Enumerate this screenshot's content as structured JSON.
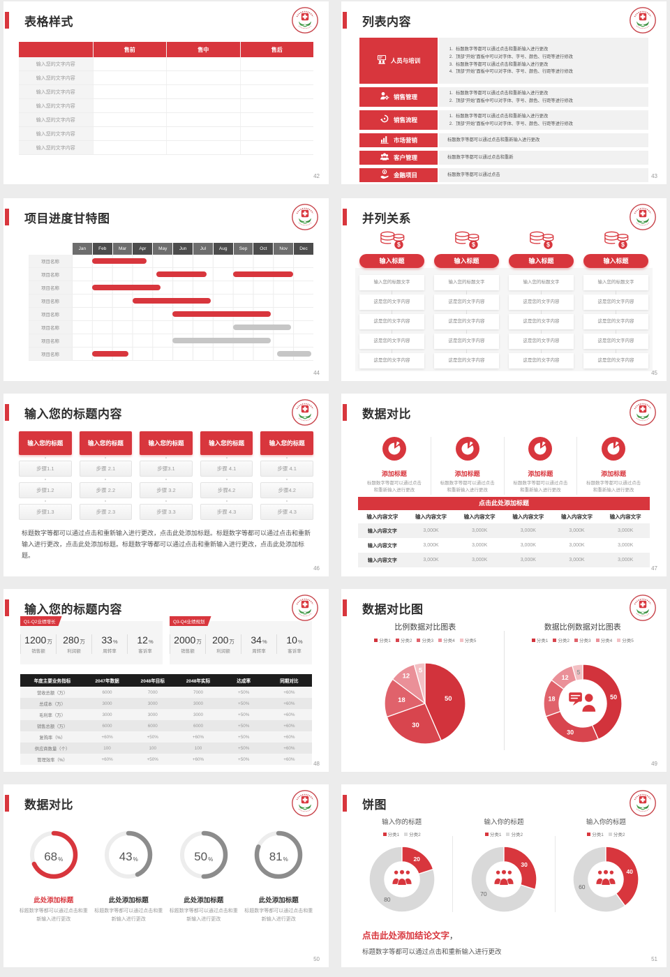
{
  "page": {
    "bg": "#ececec",
    "slide_bg": "#ffffff",
    "accent": "#d8363d"
  },
  "palette": {
    "pie": [
      "#d2333c",
      "#d8454e",
      "#e0626b",
      "#ea9098",
      "#f3c0c4"
    ],
    "gauge_gray": "#8c8c8c",
    "donut_gray": "#d9d9d9",
    "gantt_gray": "#c6c6c6"
  },
  "logo": {
    "name": "red-cross-badge"
  },
  "slides": {
    "s42": {
      "title": "表格样式",
      "page_num": "42",
      "table": {
        "headers": [
          "售前",
          "售中",
          "售后"
        ],
        "rows": [
          "输入您的文字内容",
          "输入您的文字内容",
          "输入您的文字内容",
          "输入您的文字内容",
          "输入您的文字内容",
          "输入您的文字内容",
          "输入您的文字内容"
        ]
      }
    },
    "s43": {
      "title": "列表内容",
      "page_num": "43",
      "items": [
        {
          "icon": "training-icon",
          "label": "人员与培训",
          "numbered": true,
          "lines": [
            "标题数字等都可以通过点击和重新输入进行更改",
            "顶部“开始”面板中可以对字体、字号、颜色、行距等进行修改",
            "标题数字等都可以通过点击和重新输入进行更改",
            "顶部“开始”面板中可以对字体、字号、颜色、行距等进行修改"
          ]
        },
        {
          "icon": "sales-management-icon",
          "label": "销售管理",
          "numbered": true,
          "lines": [
            "标题数字等都可以通过点击和重新输入进行更改",
            "顶部“开始”面板中可以对字体、字号、颜色、行距等进行修改"
          ]
        },
        {
          "icon": "sales-process-icon",
          "label": "销售流程",
          "numbered": true,
          "lines": [
            "标题数字等都可以通过点击和重新输入进行更改",
            "顶部“开始”面板中可以对字体、字号、颜色、行距等进行修改"
          ]
        },
        {
          "icon": "marketing-icon",
          "label": "市场营销",
          "numbered": false,
          "lines": [
            "标题数字等都可以通过点击和重新输入进行更改"
          ]
        },
        {
          "icon": "customer-management-icon",
          "label": "客户管理",
          "numbered": false,
          "lines": [
            "标题数字等都可以通过点击和重新"
          ]
        },
        {
          "icon": "finance-project-icon",
          "label": "金融项目",
          "numbered": false,
          "lines": [
            "标题数字等都可以通过点击"
          ]
        }
      ]
    },
    "s44": {
      "title": "项目进度甘特图",
      "page_num": "44",
      "gantt": {
        "months": [
          "Jan",
          "Feb",
          "Mar",
          "Apr",
          "May",
          "Jun",
          "Jul",
          "Aug",
          "Sep",
          "Oct",
          "Nov",
          "Dec"
        ],
        "row_label": "项目名称",
        "rows": [
          {
            "bars": [
              {
                "start": 1,
                "end": 3.7,
                "color": "red"
              }
            ]
          },
          {
            "bars": [
              {
                "start": 4.2,
                "end": 6.7,
                "color": "red"
              },
              {
                "start": 8,
                "end": 11,
                "color": "red"
              }
            ]
          },
          {
            "bars": [
              {
                "start": 1,
                "end": 4.4,
                "color": "red"
              }
            ]
          },
          {
            "bars": [
              {
                "start": 3,
                "end": 6.9,
                "color": "red"
              }
            ]
          },
          {
            "bars": [
              {
                "start": 5,
                "end": 9.9,
                "color": "red"
              }
            ]
          },
          {
            "bars": [
              {
                "start": 8,
                "end": 10.9,
                "color": "gray"
              }
            ]
          },
          {
            "bars": [
              {
                "start": 5,
                "end": 9.9,
                "color": "gray"
              }
            ]
          },
          {
            "bars": [
              {
                "start": 1,
                "end": 2.8,
                "color": "red"
              },
              {
                "start": 10.2,
                "end": 11.9,
                "color": "gray"
              }
            ]
          }
        ]
      }
    },
    "s45": {
      "title": "并列关系",
      "page_num": "45",
      "columns": [
        {
          "icon": "coins-icon",
          "header": "输入标题",
          "rows": [
            "输入您的标题文字",
            "这是您的文字内容",
            "这是您的文字内容",
            "这是您的文字内容",
            "这是您的文字内容"
          ]
        },
        {
          "icon": "coins-icon",
          "header": "输入标题",
          "rows": [
            "输入您的标题文字",
            "这是您的文字内容",
            "这是您的文字内容",
            "这是您的文字内容",
            "这是您的文字内容"
          ]
        },
        {
          "icon": "coins-icon",
          "header": "输入标题",
          "rows": [
            "输入您的标题文字",
            "这是您的文字内容",
            "这是您的文字内容",
            "这是您的文字内容",
            "这是您的文字内容"
          ]
        },
        {
          "icon": "coins-icon",
          "header": "输入标题",
          "rows": [
            "输入您的标题文字",
            "这是您的文字内容",
            "这是您的文字内容",
            "这是您的文字内容",
            "这是您的文字内容"
          ]
        }
      ]
    },
    "s46": {
      "title": "输入您的标题内容",
      "page_num": "46",
      "columns": [
        {
          "header": "输入您的标题",
          "steps": [
            "步骤1.1",
            "步骤1.2",
            "步骤1.3"
          ]
        },
        {
          "header": "输入您的标题",
          "steps": [
            "步骤 2.1",
            "步骤 2.2",
            "步骤 2.3"
          ]
        },
        {
          "header": "输入您的标题",
          "steps": [
            "步骤3.1",
            "步骤 3.2",
            "步骤 3.3"
          ]
        },
        {
          "header": "输入您的标题",
          "steps": [
            "步骤 4.1",
            "步骤4.2",
            "步骤 4.3"
          ]
        },
        {
          "header": "输入您的标题",
          "steps": [
            "步骤 4.1",
            "步骤4.2",
            "步骤 4.3"
          ]
        }
      ],
      "paragraph": "标题数字等都可以通过点击和重新输入进行更改，点击此处添加标题。标题数字等都可以通过点击和重新输入进行更改，点击此处添加标题。标题数字等都可以通过点击和重新输入进行更改，点击此处添加标题。"
    },
    "s47": {
      "title": "数据对比",
      "page_num": "47",
      "features": [
        {
          "icon": "pie-badge-icon",
          "title": "添加标题",
          "desc": "标题数字等都可以通过点击和重新输入进行更改"
        },
        {
          "icon": "pie-badge-icon",
          "title": "添加标题",
          "desc": "标题数字等都可以通过点击和重新输入进行更改"
        },
        {
          "icon": "pie-badge-icon",
          "title": "添加标题",
          "desc": "标题数字等都可以通过点击和重新输入进行更改"
        },
        {
          "icon": "pie-badge-icon",
          "title": "添加标题",
          "desc": "标题数字等都可以通过点击和重新输入进行更改"
        }
      ],
      "banner": "点击此处添加标题",
      "table": {
        "headers": [
          "输入内容文字",
          "输入内容文字",
          "输入内容文字",
          "输入内容文字",
          "输入内容文字",
          "输入内容文字"
        ],
        "rows": [
          {
            "label": "输入内容文字",
            "values": [
              "3,000K",
              "3,000K",
              "3,000K",
              "3,000K",
              "3,000K"
            ]
          },
          {
            "label": "输入内容文字",
            "values": [
              "3,000K",
              "3,000K",
              "3,000K",
              "3,000K",
              "3,000K"
            ]
          },
          {
            "label": "输入内容文字",
            "values": [
              "3,000K",
              "3,000K",
              "3,000K",
              "3,000K",
              "3,000K"
            ]
          }
        ]
      }
    },
    "s48": {
      "title": "输入您的标题内容",
      "page_num": "48",
      "panels": [
        {
          "tag": "Q1-Q2业绩增长",
          "stats": [
            {
              "value": "1200",
              "unit": "万",
              "label": "销售额"
            },
            {
              "value": "280",
              "unit": "万",
              "label": "利润额"
            },
            {
              "value": "33",
              "unit": "%",
              "label": "周转率"
            },
            {
              "value": "12",
              "unit": "%",
              "label": "客诉率"
            }
          ]
        },
        {
          "tag": "Q3-Q4业绩规划",
          "stats": [
            {
              "value": "2000",
              "unit": "万",
              "label": "销售额"
            },
            {
              "value": "200",
              "unit": "万",
              "label": "利润额"
            },
            {
              "value": "34",
              "unit": "%",
              "label": "周转率"
            },
            {
              "value": "10",
              "unit": "%",
              "label": "客诉率"
            }
          ]
        }
      ],
      "table": {
        "headers": [
          "年度主要业务指标",
          "2047年数据",
          "2048年目标",
          "2048年实际",
          "达成率",
          "同期对比"
        ],
        "rows": [
          [
            "营收总额（万）",
            "6000",
            "7000",
            "7000",
            "+50%",
            "+60%"
          ],
          [
            "总成本（万）",
            "3000",
            "3000",
            "3000",
            "+50%",
            "+60%"
          ],
          [
            "毛利率（万）",
            "3000",
            "3000",
            "3000",
            "+50%",
            "+60%"
          ],
          [
            "销售总额（万）",
            "6000",
            "6000",
            "6000",
            "+50%",
            "+60%"
          ],
          [
            "复购率（%）",
            "+60%",
            "+50%",
            "+60%",
            "+50%",
            "+60%"
          ],
          [
            "供应商数量（个）",
            "100",
            "100",
            "100",
            "+50%",
            "+60%"
          ],
          [
            "管理效率（%）",
            "+60%",
            "+50%",
            "+60%",
            "+50%",
            "+60%"
          ]
        ]
      }
    },
    "s49": {
      "title": "数据对比图",
      "page_num": "49",
      "charts": [
        {
          "type": "pie",
          "title": "比例数据对比图表",
          "categories": [
            "分类1",
            "分类2",
            "分类3",
            "分类4",
            "分类5"
          ],
          "values": [
            50,
            30,
            18,
            12,
            5
          ]
        },
        {
          "type": "donut",
          "title": "数据比例数据对比图表",
          "categories": [
            "分类1",
            "分类2",
            "分类3",
            "分类4",
            "分类5"
          ],
          "values": [
            50,
            30,
            18,
            12,
            5
          ],
          "center_icon": "person-chat-icon"
        }
      ]
    },
    "s50": {
      "title": "数据对比",
      "page_num": "50",
      "gauges": [
        {
          "percent": 68,
          "accent": true,
          "title": "此处添加标题",
          "desc": "标题数字等都可以通过点击和重新输入进行更改"
        },
        {
          "percent": 43,
          "accent": false,
          "title": "此处添加标题",
          "desc": "标题数字等都可以通过点击和重新输入进行更改"
        },
        {
          "percent": 50,
          "accent": false,
          "title": "此处添加标题",
          "desc": "标题数字等都可以通过点击和重新输入进行更改"
        },
        {
          "percent": 81,
          "accent": false,
          "title": "此处添加标题",
          "desc": "标题数字等都可以通过点击和重新输入进行更改"
        }
      ]
    },
    "s51": {
      "title": "饼图",
      "page_num": "51",
      "donuts": [
        {
          "title": "输入你的标题",
          "legend": [
            "分类1",
            "分类2"
          ],
          "values": [
            20,
            80
          ],
          "center_icon": "people-icon"
        },
        {
          "title": "输入你的标题",
          "legend": [
            "分类1",
            "分类2"
          ],
          "values": [
            30,
            70
          ],
          "center_icon": "people-icon"
        },
        {
          "title": "输入你的标题",
          "legend": [
            "分类1",
            "分类2"
          ],
          "values": [
            40,
            60
          ],
          "center_icon": "people-icon"
        }
      ],
      "conclusion": "点击此处添加结论文字",
      "conclusion_comma": "，",
      "note": "标题数字等都可以通过点击和重新输入进行更改"
    }
  }
}
